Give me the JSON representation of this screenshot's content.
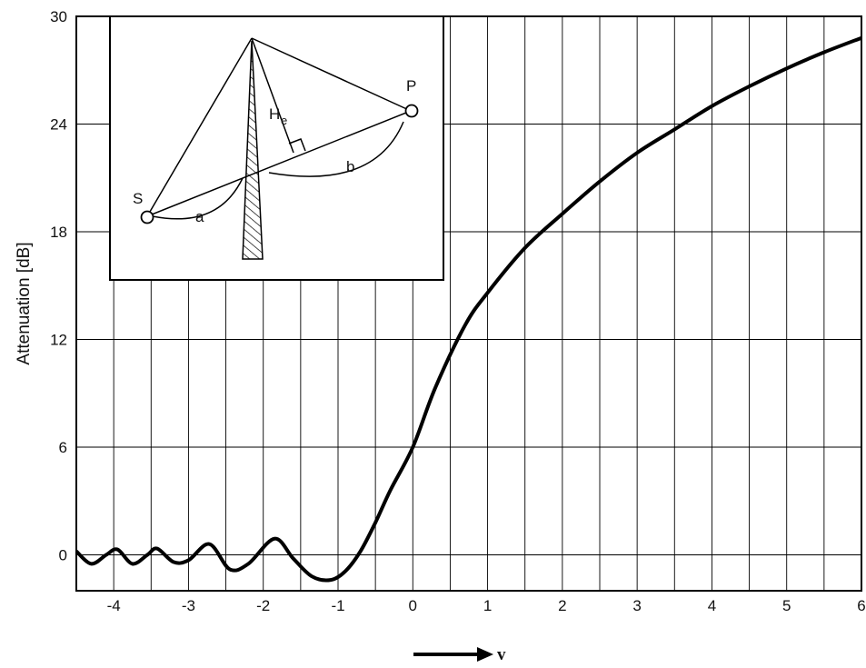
{
  "chart_data": {
    "type": "line",
    "title": "",
    "xlabel": "v",
    "ylabel": "Attenuation [dB]",
    "xlim": [
      -4.5,
      6
    ],
    "ylim": [
      -2,
      30
    ],
    "grid": true,
    "x_ticks": [
      -4,
      -3,
      -2,
      -1,
      0,
      1,
      2,
      3,
      4,
      5,
      6
    ],
    "x_tick_labels": [
      "-4",
      "-3",
      "-2",
      "-1",
      "0",
      "1",
      "2",
      "3",
      "4",
      "5",
      "6"
    ],
    "y_ticks": [
      0,
      6,
      12,
      18,
      24,
      30
    ],
    "y_tick_labels": [
      "0",
      "6",
      "12",
      "18",
      "24",
      "30"
    ],
    "series": [
      {
        "x": [
          -4.5,
          -4.3,
          -4.1,
          -3.95,
          -3.75,
          -3.55,
          -3.42,
          -3.2,
          -3.0,
          -2.72,
          -2.45,
          -2.2,
          -1.85,
          -1.6,
          -1.35,
          -1.1,
          -0.9,
          -0.7,
          -0.5,
          -0.3,
          0.0,
          0.3,
          0.7,
          1.0,
          1.5,
          2.0,
          2.5,
          3.0,
          3.5,
          4.0,
          4.5,
          5.0,
          5.5,
          6.0
        ],
        "values": [
          0.2,
          -0.5,
          0.0,
          0.3,
          -0.5,
          0.0,
          0.35,
          -0.4,
          -0.3,
          0.6,
          -0.8,
          -0.5,
          0.9,
          -0.2,
          -1.2,
          -1.4,
          -0.9,
          0.2,
          1.8,
          3.6,
          6.0,
          9.3,
          12.8,
          14.6,
          17.1,
          19.0,
          20.8,
          22.4,
          23.7,
          25.0,
          26.1,
          27.1,
          28.0,
          28.8
        ]
      }
    ]
  },
  "inset": {
    "label_s": "S",
    "label_p": "P",
    "label_he_main": "H",
    "label_he_sub": "e",
    "label_a": "a",
    "label_b": "b"
  }
}
